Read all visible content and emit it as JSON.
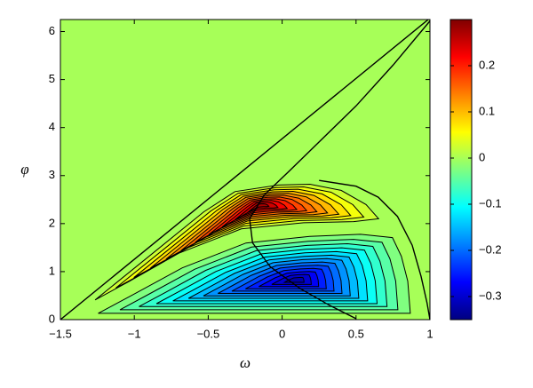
{
  "chart_data": {
    "type": "contour",
    "x_label": "ω",
    "y_label": "φ",
    "xlim": [
      -1.5,
      1
    ],
    "ylim": [
      0,
      6.25
    ],
    "xticks": [
      {
        "value": -1.5,
        "label": "−1.5"
      },
      {
        "value": -1,
        "label": "−1"
      },
      {
        "value": -0.5,
        "label": "−0.5"
      },
      0,
      0.5,
      1
    ],
    "yticks": [
      0,
      1,
      2,
      3,
      4,
      5,
      6
    ],
    "levels": [
      -0.325,
      -0.3,
      -0.275,
      -0.25,
      -0.225,
      -0.2,
      -0.175,
      -0.15,
      -0.125,
      -0.1,
      -0.075,
      -0.05,
      -0.025,
      0.025,
      0.05,
      0.075,
      0.1,
      0.125,
      0.15,
      0.175,
      0.2,
      0.225,
      0.25,
      0.275
    ],
    "clim": [
      -0.35,
      0.3
    ],
    "cticks": [
      {
        "value": -0.3,
        "label": "−0.3"
      },
      {
        "value": -0.2,
        "label": "−0.2"
      },
      {
        "value": -0.1,
        "label": "−0.1"
      },
      0,
      0.1,
      0.2
    ]
  }
}
